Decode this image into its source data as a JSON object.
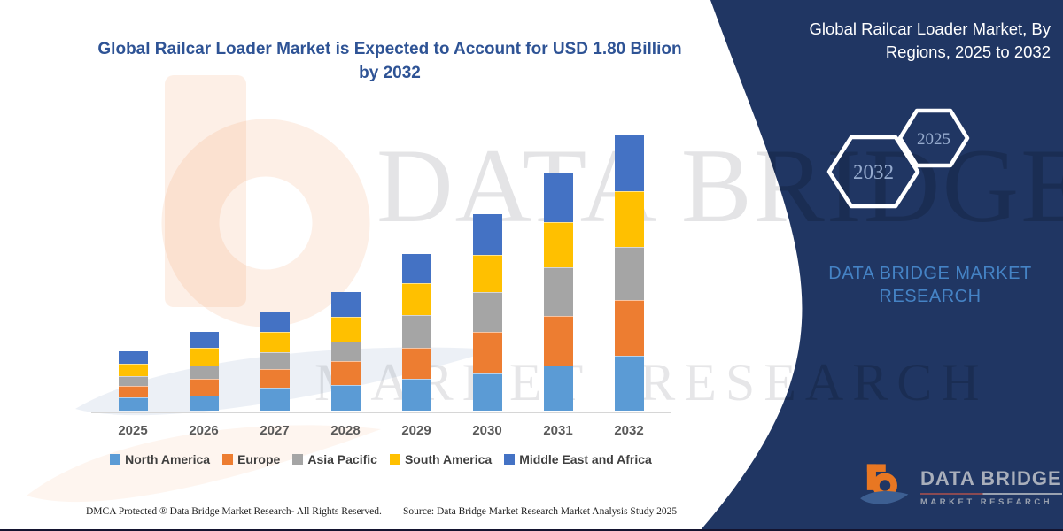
{
  "title": "Global Railcar Loader Market is Expected to Account for USD 1.80 Billion by 2032",
  "watermark": {
    "line1": "DATA BRIDGE",
    "line2": "MARKET RESEARCH"
  },
  "panel": {
    "title": "Global Railcar Loader Market, By Regions, 2025 to 2032",
    "hexagons": [
      "2032",
      "2025"
    ],
    "brand": "DATA BRIDGE MARKET RESEARCH",
    "logo": {
      "name": "DATA BRIDGE",
      "sub": "MARKET RESEARCH"
    },
    "bg_color": "#203663"
  },
  "footer": {
    "left": "DMCA Protected ® Data Bridge Market Research-  All Rights Reserved.",
    "right": "Source: Data Bridge Market Research  Market Analysis Study 2025"
  },
  "chart_data": {
    "type": "bar",
    "stacked": true,
    "title": "Global Railcar Loader Market is Expected to Account for USD 1.80 Billion by 2032",
    "unit": "USD Billion",
    "annotation": "USD 1.80 Billion by 2032",
    "categories": [
      "2025",
      "2026",
      "2027",
      "2028",
      "2029",
      "2030",
      "2031",
      "2032"
    ],
    "series": [
      {
        "name": "North America",
        "color": "#5B9BD5",
        "values": [
          0.088,
          0.098,
          0.15,
          0.166,
          0.206,
          0.245,
          0.295,
          0.356
        ]
      },
      {
        "name": "Europe",
        "color": "#ED7D31",
        "values": [
          0.072,
          0.11,
          0.125,
          0.158,
          0.206,
          0.27,
          0.322,
          0.366
        ]
      },
      {
        "name": "Asia Pacific",
        "color": "#A5A5A5",
        "values": [
          0.067,
          0.087,
          0.106,
          0.127,
          0.214,
          0.26,
          0.318,
          0.347
        ]
      },
      {
        "name": "South America",
        "color": "#FFC000",
        "values": [
          0.081,
          0.116,
          0.135,
          0.163,
          0.206,
          0.245,
          0.295,
          0.366
        ]
      },
      {
        "name": "Middle East and Africa",
        "color": "#4472C4",
        "values": [
          0.077,
          0.106,
          0.131,
          0.16,
          0.193,
          0.266,
          0.318,
          0.365
        ]
      }
    ],
    "totals": [
      0.385,
      0.517,
      0.647,
      0.774,
      1.025,
      1.286,
      1.548,
      1.8
    ],
    "value_axis_visible": false,
    "legend_position": "bottom",
    "grid": false
  }
}
